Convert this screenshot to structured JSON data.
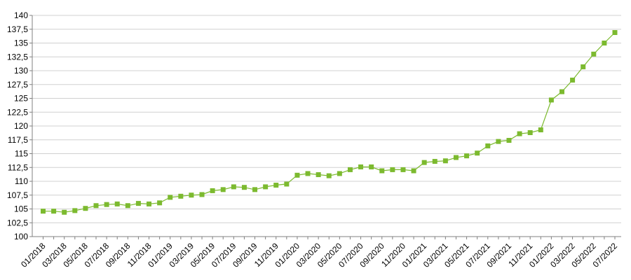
{
  "chart_data": {
    "type": "line",
    "title": "",
    "xlabel": "",
    "ylabel": "",
    "ylim": [
      100,
      140
    ],
    "y_ticks": [
      "100",
      "102,5",
      "105",
      "107,5",
      "110",
      "112,5",
      "115",
      "117,5",
      "120",
      "122,5",
      "125",
      "127,5",
      "130",
      "132,5",
      "135",
      "137,5",
      "140"
    ],
    "x_tick_labels": [
      "01/2018",
      "03/2018",
      "05/2018",
      "07/2018",
      "09/2018",
      "11/2018",
      "01/2019",
      "03/2019",
      "05/2019",
      "07/2019",
      "09/2019",
      "11/2019",
      "01/2020",
      "03/2020",
      "05/2020",
      "07/2020",
      "09/2020",
      "11/2020",
      "01/2021",
      "03/2021",
      "05/2021",
      "07/2021",
      "09/2021",
      "11/2021",
      "01/2022",
      "03/2022",
      "05/2022",
      "07/2022"
    ],
    "grid": true,
    "legend": "none",
    "color": "#7cba2f",
    "marker": "square",
    "series": [
      {
        "values": [
          104.6,
          104.6,
          104.4,
          104.7,
          105.1,
          105.6,
          105.8,
          105.9,
          105.6,
          106.0,
          105.9,
          106.1,
          107.1,
          107.3,
          107.5,
          107.6,
          108.3,
          108.5,
          109.0,
          108.9,
          108.5,
          109.0,
          109.3,
          109.5,
          111.1,
          111.4,
          111.2,
          111.0,
          111.4,
          112.1,
          112.6,
          112.6,
          111.9,
          112.1,
          112.1,
          111.9,
          113.4,
          113.6,
          113.7,
          114.3,
          114.6,
          115.1,
          116.4,
          117.2,
          117.4,
          118.6,
          118.8,
          119.3,
          124.7,
          126.2,
          128.3,
          130.7,
          133.0,
          135.0,
          136.9
        ]
      }
    ]
  }
}
